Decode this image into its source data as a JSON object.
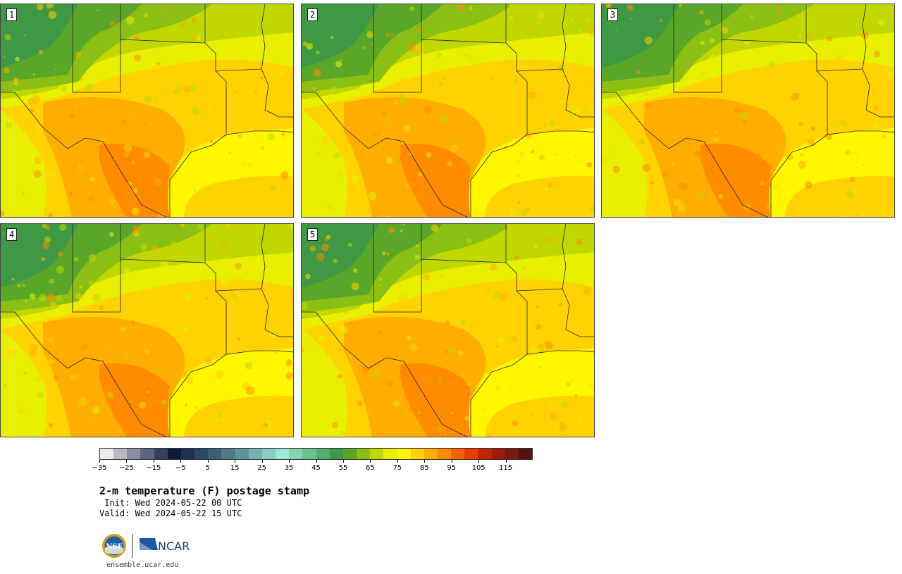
{
  "panels": [
    {
      "label": "1"
    },
    {
      "label": "2"
    },
    {
      "label": "3"
    },
    {
      "label": "4"
    },
    {
      "label": "5"
    }
  ],
  "colorbar": {
    "colors": [
      "#e8ebef",
      "#b7bac6",
      "#8a8e9e",
      "#5e6580",
      "#35405f",
      "#0f1b33",
      "#1e2f4f",
      "#2a4764",
      "#3a5f74",
      "#507a85",
      "#5f9598",
      "#75b2ae",
      "#8acdc5",
      "#9de8d9",
      "#86d4b0",
      "#6ec28f",
      "#55ad6c",
      "#3f9843",
      "#5aa628",
      "#8bbf14",
      "#c0d800",
      "#e8ef00",
      "#fff600",
      "#ffd200",
      "#ffae00",
      "#ff8c00",
      "#ff6000",
      "#e83c00",
      "#c22200",
      "#9c1a0a",
      "#7a1a10",
      "#5a1010"
    ],
    "tick_labels": [
      "−35",
      "−25",
      "−15",
      "−5",
      "5",
      "15",
      "25",
      "35",
      "45",
      "55",
      "65",
      "75",
      "85",
      "95",
      "105",
      "115"
    ]
  },
  "title": "2-m temperature (F) postage stamp",
  "init": " Init: Wed 2024-05-22 00 UTC",
  "valid": "Valid: Wed 2024-05-22 15 UTC",
  "logo": {
    "nsf_text": "NSF",
    "ncar_text": "NCAR"
  },
  "website": "ensemble.ucar.edu"
}
